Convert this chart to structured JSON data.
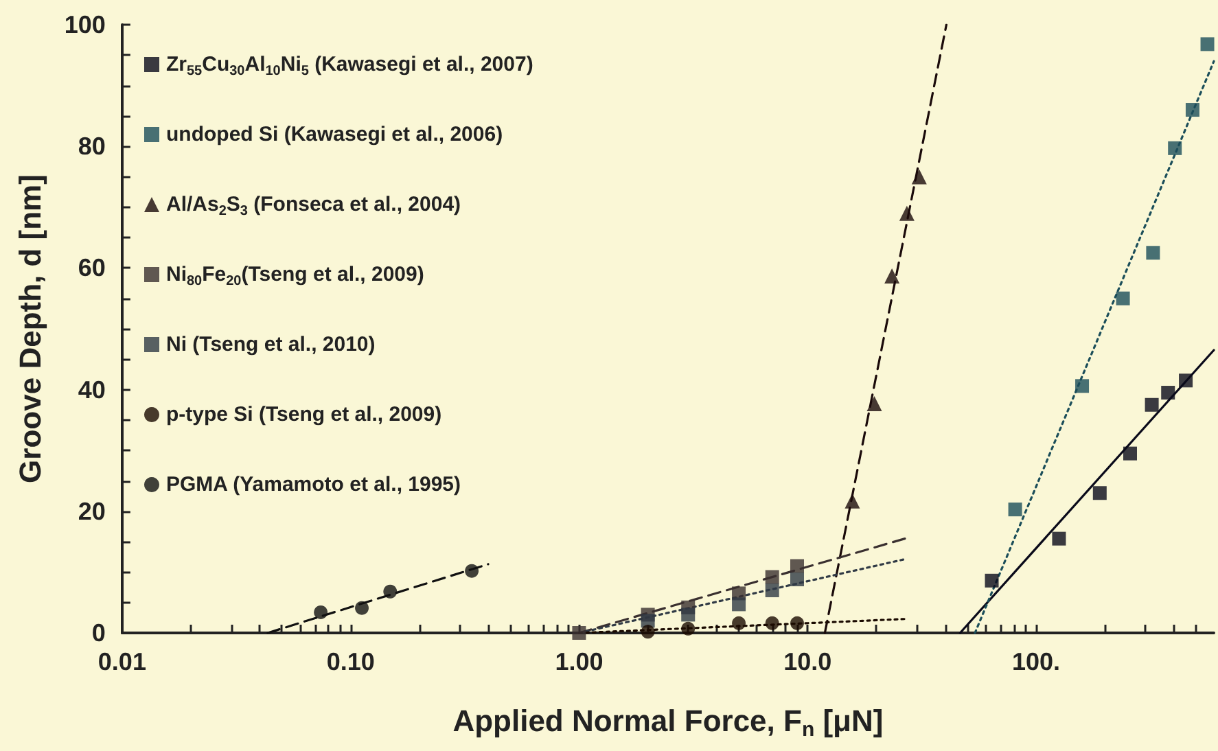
{
  "chart_data": {
    "type": "scatter",
    "xlabel": "Applied Normal Force, F$_{n}$ [μN]",
    "ylabel": "Groove Depth, d [nm]",
    "log": "x",
    "grid": false,
    "legend": "top left",
    "xlim": [
      0.01,
      600
    ],
    "ylim": [
      0,
      100
    ],
    "xticks": [
      {
        "value": 0.01,
        "label": "0.01"
      },
      {
        "value": 0.02,
        "label": null
      },
      {
        "value": 0.03,
        "label": null
      },
      {
        "value": 0.04,
        "label": null
      },
      {
        "value": 0.05,
        "label": null
      },
      {
        "value": 0.06,
        "label": null
      },
      {
        "value": 0.07,
        "label": null
      },
      {
        "value": 0.08,
        "label": null
      },
      {
        "value": 0.09,
        "label": null
      },
      {
        "value": 0.1,
        "label": "0.10"
      },
      {
        "value": 0.2,
        "label": null
      },
      {
        "value": 0.3,
        "label": null
      },
      {
        "value": 0.4,
        "label": null
      },
      {
        "value": 0.5,
        "label": null
      },
      {
        "value": 0.6,
        "label": null
      },
      {
        "value": 0.7,
        "label": null
      },
      {
        "value": 0.8,
        "label": null
      },
      {
        "value": 0.9,
        "label": null
      },
      {
        "value": 1,
        "label": "1.00"
      },
      {
        "value": 2,
        "label": null
      },
      {
        "value": 3,
        "label": null
      },
      {
        "value": 4,
        "label": null
      },
      {
        "value": 5,
        "label": null
      },
      {
        "value": 6,
        "label": null
      },
      {
        "value": 7,
        "label": null
      },
      {
        "value": 8,
        "label": null
      },
      {
        "value": 9,
        "label": null
      },
      {
        "value": 10,
        "label": "10.0"
      },
      {
        "value": 20,
        "label": null
      },
      {
        "value": 30,
        "label": null
      },
      {
        "value": 40,
        "label": null
      },
      {
        "value": 50,
        "label": null
      },
      {
        "value": 60,
        "label": null
      },
      {
        "value": 70,
        "label": null
      },
      {
        "value": 80,
        "label": null
      },
      {
        "value": 90,
        "label": null
      },
      {
        "value": 100,
        "label": "100."
      },
      {
        "value": 200,
        "label": null
      },
      {
        "value": 300,
        "label": null
      },
      {
        "value": 400,
        "label": null
      },
      {
        "value": 500,
        "label": null
      }
    ],
    "yticks": [
      0,
      {
        "value": 5,
        "label": null
      },
      {
        "value": 10,
        "label": null
      },
      {
        "value": 15,
        "label": null
      },
      20,
      {
        "value": 25,
        "label": null
      },
      {
        "value": 30,
        "label": null
      },
      {
        "value": 35,
        "label": null
      },
      40,
      {
        "value": 45,
        "label": null
      },
      {
        "value": 50,
        "label": null
      },
      {
        "value": 55,
        "label": null
      },
      60,
      {
        "value": 65,
        "label": null
      },
      {
        "value": 70,
        "label": null
      },
      {
        "value": 75,
        "label": null
      },
      80,
      {
        "value": 85,
        "label": null
      },
      {
        "value": 90,
        "label": null
      },
      {
        "value": 95,
        "label": null
      },
      100
    ],
    "series": [
      {
        "name": "Zr$_{55}$Cu$_{30}$Al$_{10}$Ni$_{5}$ (Kawasegi et al., 2007)",
        "color": "#0a0a1a",
        "marker": "square",
        "x": [
          64,
          126,
          190,
          258,
          321,
          378,
          452
        ],
        "values": [
          8.6,
          15.5,
          23,
          29.5,
          37.5,
          39.5,
          41.5
        ]
      },
      {
        "name": "undoped Si (Kawasegi et al., 2006)",
        "color": "#1b4e5a",
        "marker": "square",
        "x": [
          81,
          159,
          240,
          325,
          405,
          484,
          562
        ],
        "values": [
          20.3,
          40.6,
          55,
          62.5,
          79.7,
          86,
          96.8
        ]
      },
      {
        "name": "Al/As$_{2}$S$_{3}$ (Fonseca et al., 2004)",
        "color": "#1a0a0a",
        "marker": "triangle",
        "x": [
          15.7,
          19.6,
          23.4,
          27.2,
          30.8
        ],
        "values": [
          21.7,
          37.7,
          58.7,
          69,
          75
        ]
      },
      {
        "name": "Ni$_{80}$Fe$_{20}$(Tseng et al., 2009)",
        "color": "#3a3030",
        "marker": "square",
        "x": [
          1,
          2,
          3,
          5,
          7,
          9
        ],
        "values": [
          0,
          3,
          4.2,
          6.5,
          9.2,
          11
        ]
      },
      {
        "name": "Ni (Tseng et al., 2010)",
        "color": "#303a45",
        "marker": "square",
        "x": [
          2,
          3,
          5,
          7,
          9
        ],
        "values": [
          2,
          3,
          4.7,
          7,
          8.8
        ]
      },
      {
        "name": "p-type Si (Tseng et al., 2009)",
        "color": "#1a0a00",
        "marker": "circle",
        "x": [
          2,
          3,
          5,
          7,
          9
        ],
        "values": [
          0.2,
          0.7,
          1.6,
          1.6,
          1.6
        ]
      },
      {
        "name": "PGMA (Yamamoto et al., 1995)",
        "color": "#111111",
        "marker": "circle",
        "x": [
          0.074,
          0.112,
          0.149,
          0.339
        ],
        "values": [
          3.4,
          4.1,
          6.8,
          10.2
        ]
      },
      {
        "type": "line",
        "color": "#0a0a1a",
        "line_style": "solid",
        "marker": "none",
        "x": [
          46.5,
          600
        ],
        "values": [
          0,
          46.5
        ]
      },
      {
        "type": "line",
        "color": "#1b4e5a",
        "line_style": "dotted",
        "marker": "none",
        "x": [
          54,
          600
        ],
        "values": [
          0,
          94
        ]
      },
      {
        "type": "line",
        "color": "#1a0a0a",
        "line_style": "dashed",
        "marker": "none",
        "x": [
          11.9,
          40.5
        ],
        "values": [
          0,
          100
        ]
      },
      {
        "type": "line",
        "color": "#3a3030",
        "line_style": "dashed",
        "marker": "none",
        "x": [
          1,
          27.2
        ],
        "values": [
          0,
          15.6
        ]
      },
      {
        "type": "line",
        "color": "#303a45",
        "line_style": "dotted",
        "marker": "none",
        "x": [
          1,
          27.2
        ],
        "values": [
          0,
          12.2
        ]
      },
      {
        "type": "line",
        "color": "#1a0a00",
        "line_style": "dotted",
        "marker": "none",
        "x": [
          1,
          27
        ],
        "values": [
          0,
          2.3
        ]
      },
      {
        "type": "line",
        "color": "#111111",
        "line_style": "dashed",
        "marker": "none",
        "x": [
          0.0434,
          0.4
        ],
        "values": [
          0,
          11.3
        ]
      }
    ]
  }
}
